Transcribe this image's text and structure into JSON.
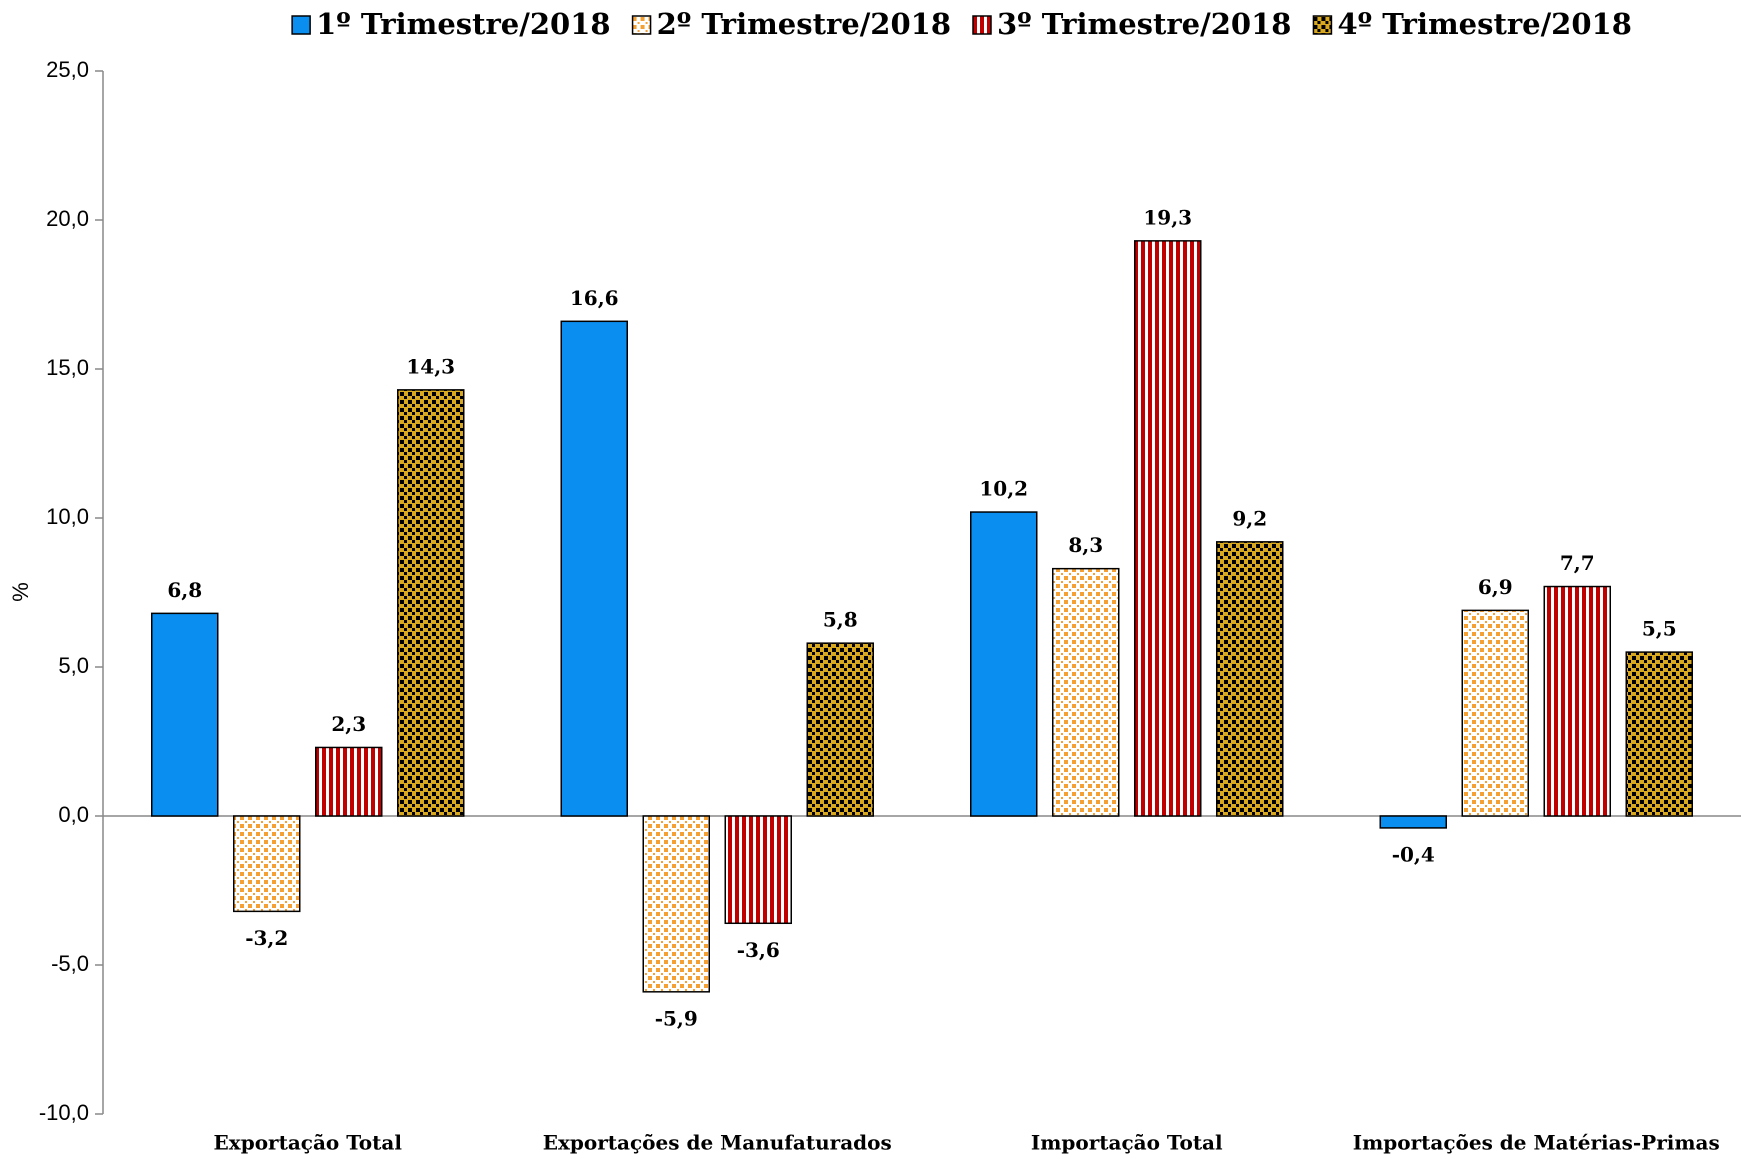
{
  "chart_data": {
    "type": "bar",
    "categories": [
      "Exportação Total",
      "Exportações de Manufaturados",
      "Importação Total",
      "Importações de Matérias-Primas"
    ],
    "series": [
      {
        "name": "1º Trimestre/2018",
        "color": "#0a8ef0",
        "pattern": "solid",
        "values": [
          6.8,
          16.6,
          10.2,
          -0.4
        ],
        "value_labels": [
          "6,8",
          "16,6",
          "10,2",
          "-0,4"
        ]
      },
      {
        "name": "2º Trimestre/2018",
        "color": "#f5a033",
        "pattern": "dots",
        "values": [
          -3.2,
          -5.9,
          8.3,
          6.9
        ],
        "value_labels": [
          "-3,2",
          "-5,9",
          "8,3",
          "6,9"
        ]
      },
      {
        "name": "3º Trimestre/2018",
        "color": "#c00000",
        "pattern": "stripes",
        "values": [
          2.3,
          -3.6,
          19.3,
          7.7
        ],
        "value_labels": [
          "2,3",
          "-3,6",
          "19,3",
          "7,7"
        ]
      },
      {
        "name": "4º Trimestre/2018",
        "color": "#d8a820",
        "pattern": "checker",
        "values": [
          14.3,
          5.8,
          9.2,
          5.5
        ],
        "value_labels": [
          "14,3",
          "5,8",
          "9,2",
          "5,5"
        ]
      }
    ],
    "ylabel": "%",
    "ylim": [
      -10,
      25
    ],
    "yticks": [
      {
        "value": -10,
        "label": "-10,0"
      },
      {
        "value": -5,
        "label": "-5,0"
      },
      {
        "value": 0,
        "label": "0,0"
      },
      {
        "value": 5,
        "label": "5,0"
      },
      {
        "value": 10,
        "label": "10,0"
      },
      {
        "value": 15,
        "label": "15,0"
      },
      {
        "value": 20,
        "label": "20,0"
      },
      {
        "value": 25,
        "label": "25,0"
      }
    ],
    "legend": "top"
  }
}
